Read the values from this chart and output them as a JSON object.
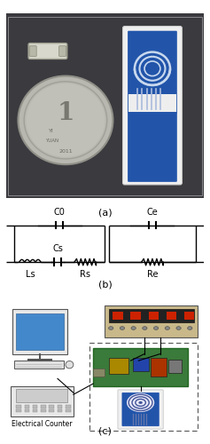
{
  "figure_width": 2.37,
  "figure_height": 5.0,
  "dpi": 100,
  "bg_color": "#ffffff",
  "label_a": "(a)",
  "label_b": "(b)",
  "label_c": "(c)",
  "label_electrical": "Electrical Counter",
  "circuit_line_color": "#000000"
}
